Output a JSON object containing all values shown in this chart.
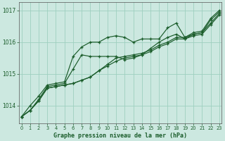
{
  "title": "Graphe pression niveau de la mer (hPa)",
  "bg_color": "#cce8e0",
  "grid_color": "#9ecfbf",
  "line_color": "#1a5c2a",
  "xlim": [
    -0.3,
    23.3
  ],
  "ylim": [
    1013.45,
    1017.25
  ],
  "yticks": [
    1014,
    1015,
    1016,
    1017
  ],
  "xticks": [
    0,
    1,
    2,
    3,
    4,
    5,
    6,
    7,
    8,
    9,
    10,
    11,
    12,
    13,
    14,
    15,
    16,
    17,
    18,
    19,
    20,
    21,
    22,
    23
  ],
  "lines": [
    [
      1013.65,
      1014.0,
      1014.3,
      1014.65,
      1014.7,
      1014.75,
      1015.55,
      1015.85,
      1016.0,
      1016.0,
      1016.15,
      1016.2,
      1016.15,
      1016.0,
      1016.1,
      1016.1,
      1016.1,
      1016.45,
      1016.6,
      1016.15,
      1016.3,
      1016.35,
      1016.75,
      1017.0
    ],
    [
      1013.65,
      1013.85,
      1014.2,
      1014.6,
      1014.65,
      1014.7,
      1015.15,
      1015.6,
      1015.55,
      1015.55,
      1015.55,
      1015.55,
      1015.45,
      1015.5,
      1015.6,
      1015.8,
      1016.0,
      1016.15,
      1016.25,
      1016.1,
      1016.25,
      1016.3,
      1016.7,
      1016.95
    ],
    [
      1013.65,
      1013.85,
      1014.15,
      1014.55,
      1014.6,
      1014.65,
      1014.7,
      1014.8,
      1014.9,
      1015.1,
      1015.3,
      1015.5,
      1015.55,
      1015.6,
      1015.65,
      1015.75,
      1015.9,
      1016.0,
      1016.15,
      1016.15,
      1016.25,
      1016.3,
      1016.6,
      1016.9
    ],
    [
      1013.65,
      1013.85,
      1014.15,
      1014.55,
      1014.6,
      1014.65,
      1014.7,
      1014.8,
      1014.9,
      1015.1,
      1015.25,
      1015.4,
      1015.5,
      1015.55,
      1015.6,
      1015.7,
      1015.85,
      1015.95,
      1016.1,
      1016.1,
      1016.2,
      1016.25,
      1016.55,
      1016.85
    ]
  ]
}
